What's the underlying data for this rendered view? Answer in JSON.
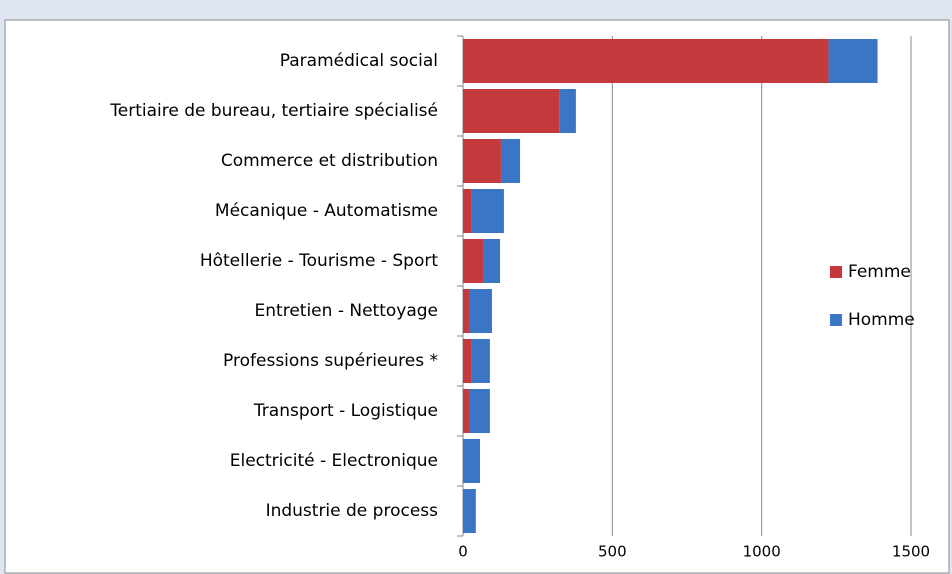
{
  "chart_data": {
    "type": "stacked-barh",
    "categories": [
      "Paramédical social",
      "Tertiaire de bureau, tertiaire spécialisé",
      "Commerce et distribution",
      "Mécanique - Automatisme",
      "Hôtellerie - Tourisme - Sport",
      "Entretien - Nettoyage",
      "Professions supérieures *",
      "Transport - Logistique",
      "Electricité - Electronique",
      "Industrie de process"
    ],
    "series": [
      {
        "name": "Femme",
        "color": "#c43a3c",
        "values": [
          1224,
          324,
          127,
          27,
          70,
          20,
          27,
          20,
          0,
          0
        ]
      },
      {
        "name": "Homme",
        "color": "#3b76c6",
        "values": [
          164,
          54,
          64,
          110,
          54,
          77,
          63,
          70,
          57,
          43
        ]
      }
    ],
    "xlim": [
      0,
      1500
    ],
    "xticks": [
      0,
      500,
      1000,
      1500
    ],
    "grid": true,
    "legend": "right"
  }
}
